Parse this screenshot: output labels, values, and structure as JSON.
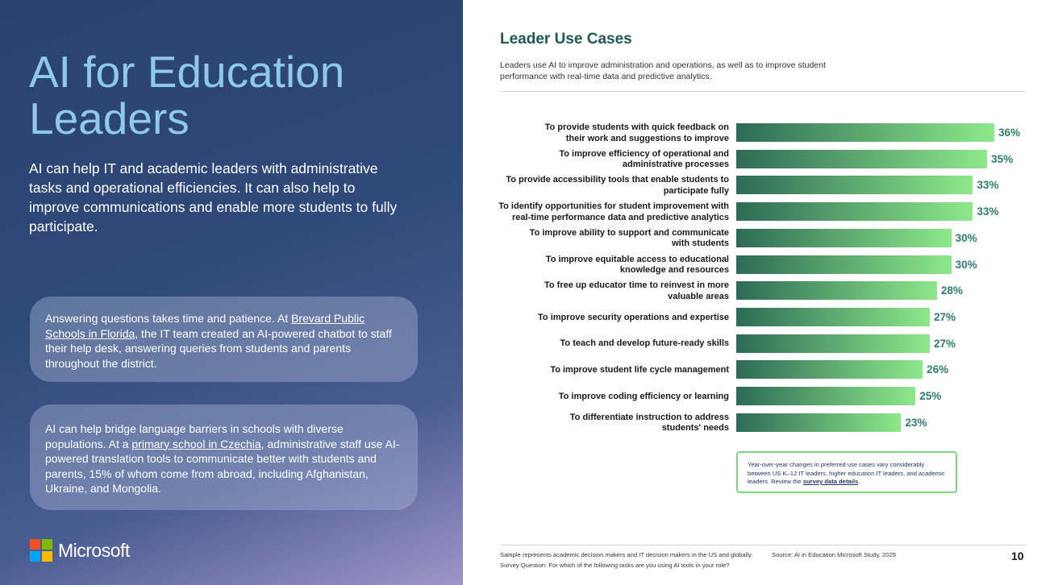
{
  "left": {
    "title_line1": "AI for Education",
    "title_line2": "Leaders",
    "intro": "AI can help IT and academic leaders with administrative tasks and operational efficiencies. It can also help to improve communications and enable more students to fully participate.",
    "card1": {
      "before": "Answering questions takes time and patience. At ",
      "link": "Brevard Public Schools in Florida",
      "after": ", the IT team created an AI-powered chatbot to staff their help desk, answering queries from students and parents throughout the district."
    },
    "card2": {
      "before": "AI can help bridge language barriers in schools with diverse populations. At a ",
      "link": "primary school in Czechia",
      "after": ", administrative staff use AI-powered translation tools to communicate better with students and parents, 15% of whom come from abroad, including Afghanistan, Ukraine, and Mongolia."
    },
    "brand": "Microsoft",
    "logo_colors": [
      "#f25022",
      "#7fba00",
      "#00a4ef",
      "#ffb900"
    ]
  },
  "chart_data": {
    "type": "bar",
    "orientation": "horizontal",
    "title": "Leader Use Cases",
    "subtitle": "Leaders use AI to improve administration and operations, as well as to improve student performance with real-time data and predictive analytics.",
    "categories": [
      [
        "To provide students with quick feedback on",
        "their work and suggestions to improve"
      ],
      [
        "To improve efficiency of operational and",
        "administrative processes"
      ],
      [
        "To provide accessibility tools that enable students to",
        "participate fully"
      ],
      [
        "To identify opportunities for student improvement with",
        "real-time performance data and predictive analytics"
      ],
      [
        "To improve ability to support and communicate",
        "with students"
      ],
      [
        "To improve equitable access to educational",
        "knowledge and resources"
      ],
      [
        "To free up educator time to reinvest in more",
        "valuable areas"
      ],
      [
        "To improve security operations and expertise"
      ],
      [
        "To teach and develop future-ready skills"
      ],
      [
        "To improve student life cycle management"
      ],
      [
        "To improve coding efficiency or learning"
      ],
      [
        "To differentiate instruction to address",
        "students' needs"
      ]
    ],
    "values": [
      36,
      35,
      33,
      33,
      30,
      30,
      28,
      27,
      27,
      26,
      25,
      23
    ],
    "value_labels": [
      "36%",
      "35%",
      "33%",
      "33%",
      "30%",
      "30%",
      "28%",
      "27%",
      "27%",
      "26%",
      "25%",
      "23%"
    ],
    "bar_gradient": [
      "#2c6b55",
      "#8ee88a"
    ],
    "value_color": "#2e7d6b"
  },
  "note": {
    "before": "Year-over-year changes in preferred use cases vary considerably between US K–12 IT leaders, higher education IT leaders, and academic leaders. Review the ",
    "link": "survey data details",
    "after": "."
  },
  "footer": {
    "sample": "Sample represents academic decision makers and IT decision makers in the US and globally.",
    "source": "Source: AI in Education Microsoft Study, 2025",
    "question": "Survey Question: For which of the following tasks are you using AI tools in your role?",
    "page_number": "10"
  }
}
